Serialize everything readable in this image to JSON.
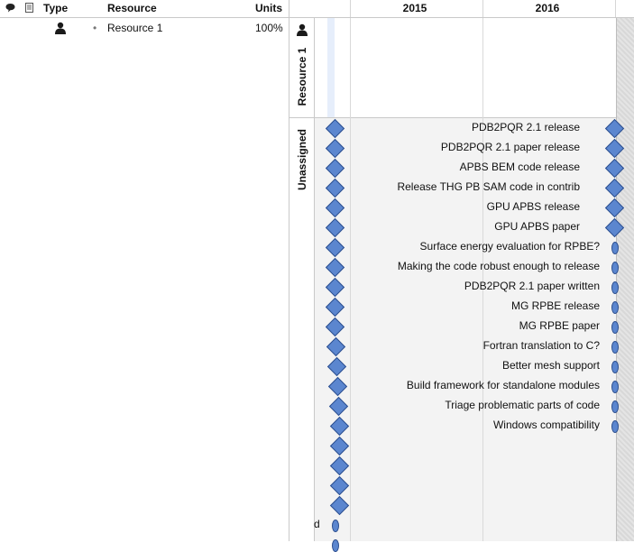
{
  "table": {
    "headers": {
      "type": "Type",
      "resource": "Resource",
      "units": "Units"
    },
    "icons": {
      "notes": "speech-bubble-icon",
      "doc": "document-icon"
    },
    "rows": [
      {
        "type_icon": "person-icon",
        "bullet": "•",
        "name": "Resource 1",
        "units": "100%"
      }
    ]
  },
  "timeline": {
    "years": [
      "2015",
      "2016"
    ]
  },
  "lanes": {
    "resource_label": "Resource 1",
    "unassigned_label": "Unassigned"
  },
  "tasks": [
    {
      "label": "PDB2PQR 2.1 release",
      "end": "diamond"
    },
    {
      "label": "PDB2PQR 2.1 paper release",
      "end": "diamond"
    },
    {
      "label": "APBS BEM code release",
      "end": "diamond"
    },
    {
      "label": "Release THG PB SAM code in contrib",
      "end": "diamond"
    },
    {
      "label": "GPU APBS release",
      "end": "diamond"
    },
    {
      "label": "GPU APBS paper",
      "end": "diamond"
    },
    {
      "label": "Surface energy evaluation for RPBE?",
      "end": "oval"
    },
    {
      "label": "Making the code robust enough to release",
      "end": "oval"
    },
    {
      "label": "PDB2PQR 2.1 paper written",
      "end": "oval"
    },
    {
      "label": "MG RPBE release",
      "end": "oval"
    },
    {
      "label": "MG RPBE paper",
      "end": "oval"
    },
    {
      "label": "Fortran translation to C?",
      "end": "oval"
    },
    {
      "label": "Better mesh support",
      "end": "oval"
    },
    {
      "label": "Build framework for standalone modules",
      "end": "oval"
    },
    {
      "label": "Triage problematic parts of code",
      "end": "oval"
    },
    {
      "label": "Windows compatibility",
      "end": "oval"
    }
  ],
  "extra_rows": [
    {
      "label": "",
      "start": "diamond"
    },
    {
      "label": "",
      "start": "diamond"
    },
    {
      "label": "",
      "start": "diamond"
    },
    {
      "label": "",
      "start": "diamond"
    },
    {
      "label": "d",
      "start": "oval"
    },
    {
      "label": "",
      "start": "oval"
    }
  ]
}
